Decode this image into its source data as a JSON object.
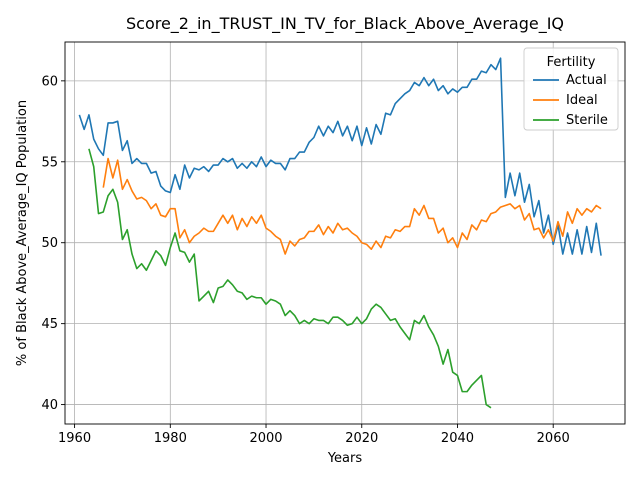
{
  "chart_data": {
    "type": "line",
    "title": "Score_2_in_TRUST_IN_TV_for_Black_Above_Average_IQ",
    "xlabel": "Years",
    "ylabel": "% of Black Above_Average_IQ Population",
    "xlim": [
      1958,
      2075
    ],
    "ylim": [
      38.8,
      62.4
    ],
    "xticks": [
      1960,
      1980,
      2000,
      2020,
      2040,
      2060
    ],
    "yticks": [
      40,
      45,
      50,
      55,
      60
    ],
    "grid": true,
    "legend": {
      "title": "Fertility",
      "placement": "top-right"
    },
    "series": [
      {
        "name": "Actual",
        "color": "#1f77b4",
        "start": 1961,
        "values": [
          57.9,
          57.0,
          57.9,
          56.4,
          55.8,
          55.4,
          57.4,
          57.4,
          57.5,
          55.7,
          56.3,
          54.9,
          55.2,
          54.9,
          54.9,
          54.3,
          54.4,
          53.5,
          53.2,
          53.1,
          54.2,
          53.3,
          54.8,
          54.0,
          54.6,
          54.5,
          54.7,
          54.4,
          54.8,
          54.8,
          55.2,
          55.0,
          55.2,
          54.6,
          54.9,
          54.6,
          55.0,
          54.7,
          55.3,
          54.7,
          55.1,
          54.9,
          54.9,
          54.5,
          55.2,
          55.2,
          55.6,
          55.6,
          56.2,
          56.5,
          57.2,
          56.6,
          57.2,
          56.8,
          57.5,
          56.6,
          57.2,
          56.3,
          57.2,
          56.0,
          57.1,
          56.1,
          57.3,
          56.7,
          58.0,
          57.9,
          58.6,
          58.9,
          59.2,
          59.4,
          59.9,
          59.7,
          60.2,
          59.7,
          60.1,
          59.4,
          59.7,
          59.2,
          59.5,
          59.3,
          59.6,
          59.6,
          60.1,
          60.1,
          60.6,
          60.5,
          61.0,
          60.7,
          61.4,
          52.8,
          54.3,
          52.9,
          54.3,
          52.5,
          53.6,
          51.6,
          52.6,
          50.6,
          51.7,
          49.9,
          51.1,
          49.3,
          50.6,
          49.3,
          50.8,
          49.3,
          51.0,
          49.4,
          51.2,
          49.2
        ]
      },
      {
        "name": "Ideal",
        "color": "#ff7f0e",
        "start": 1966,
        "values": [
          53.4,
          55.2,
          54.0,
          55.1,
          53.3,
          53.9,
          53.2,
          52.7,
          52.8,
          52.6,
          52.1,
          52.4,
          51.7,
          51.6,
          52.1,
          52.1,
          50.3,
          50.8,
          50.0,
          50.4,
          50.6,
          50.9,
          50.7,
          50.7,
          51.2,
          51.7,
          51.2,
          51.7,
          50.8,
          51.5,
          51.0,
          51.6,
          51.2,
          51.7,
          50.9,
          50.7,
          50.4,
          50.2,
          49.3,
          50.1,
          49.8,
          50.2,
          50.3,
          50.7,
          50.7,
          51.1,
          50.5,
          51.0,
          50.6,
          51.2,
          50.8,
          50.9,
          50.6,
          50.4,
          50.0,
          49.9,
          49.6,
          50.1,
          49.7,
          50.4,
          50.3,
          50.8,
          50.7,
          51.0,
          51.0,
          52.1,
          51.7,
          52.3,
          51.5,
          51.5,
          50.6,
          50.9,
          50.0,
          50.3,
          49.7,
          50.6,
          50.2,
          51.1,
          50.8,
          51.4,
          51.3,
          51.8,
          51.9,
          52.2,
          52.3,
          52.4,
          52.1,
          52.3,
          51.4,
          51.8,
          50.8,
          50.9,
          50.3,
          50.8,
          50.1,
          51.3,
          50.4,
          51.9,
          51.2,
          52.1,
          51.7,
          52.1,
          51.9,
          52.3,
          52.1
        ]
      },
      {
        "name": "Sterile",
        "color": "#2ca02c",
        "start": 1963,
        "values": [
          55.8,
          54.7,
          51.8,
          51.9,
          52.9,
          53.3,
          52.5,
          50.2,
          50.8,
          49.3,
          48.4,
          48.7,
          48.3,
          48.9,
          49.5,
          49.2,
          48.6,
          49.7,
          50.6,
          49.5,
          49.4,
          48.8,
          49.3,
          46.4,
          46.7,
          47.0,
          46.3,
          47.2,
          47.3,
          47.7,
          47.4,
          47.0,
          46.9,
          46.5,
          46.7,
          46.6,
          46.6,
          46.2,
          46.5,
          46.4,
          46.2,
          45.5,
          45.8,
          45.5,
          45.0,
          45.2,
          45.0,
          45.3,
          45.2,
          45.2,
          45.0,
          45.4,
          45.4,
          45.2,
          44.9,
          45.0,
          45.4,
          45.0,
          45.3,
          45.9,
          46.2,
          46.0,
          45.6,
          45.2,
          45.3,
          44.8,
          44.4,
          44.0,
          45.2,
          45.0,
          45.5,
          44.8,
          44.3,
          43.6,
          42.5,
          43.4,
          42.0,
          41.8,
          40.8,
          40.8,
          41.2,
          41.5,
          41.8,
          40.0,
          39.8
        ]
      }
    ]
  }
}
